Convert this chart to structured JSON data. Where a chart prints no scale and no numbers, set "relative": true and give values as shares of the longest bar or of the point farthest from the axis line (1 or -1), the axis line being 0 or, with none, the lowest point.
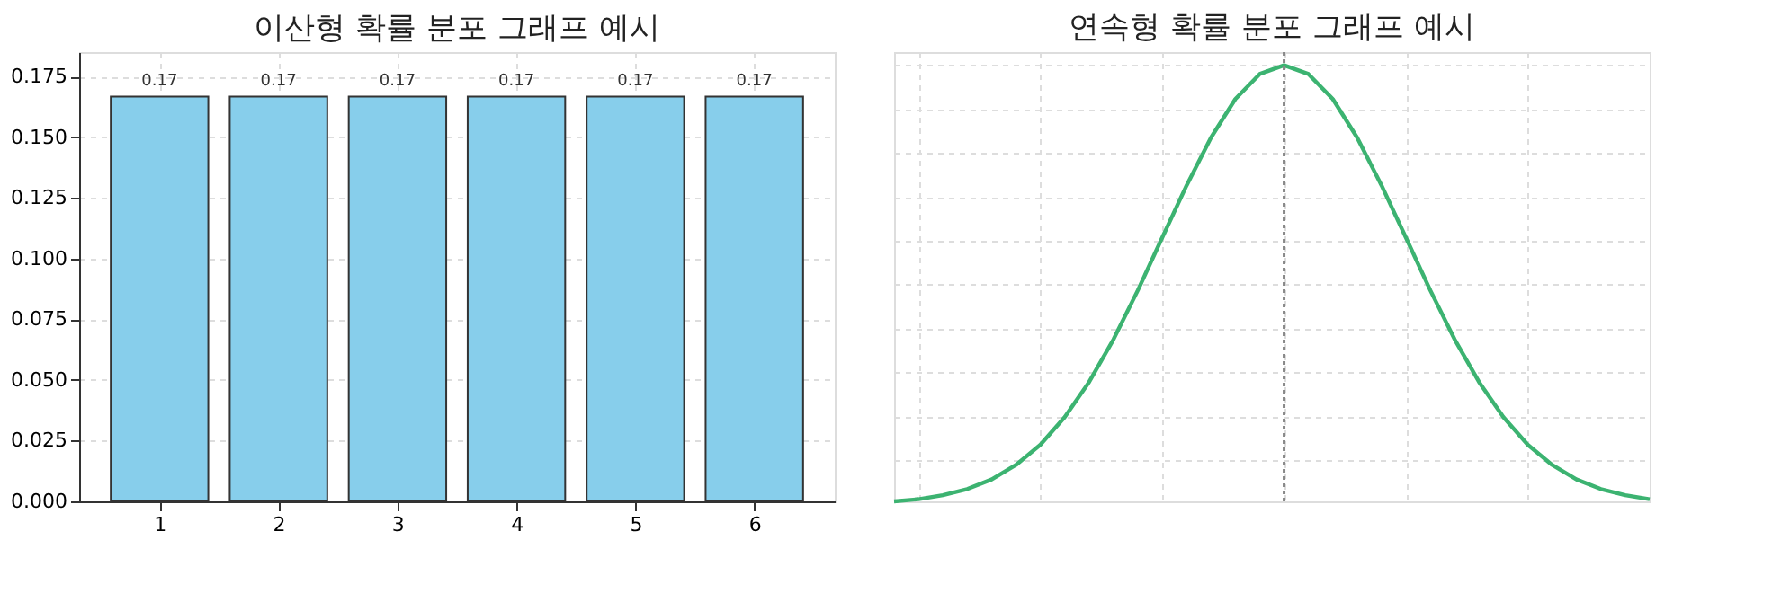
{
  "chart_data": [
    {
      "type": "bar",
      "title": "이산형 확률 분포 그래프 예시",
      "categories": [
        "1",
        "2",
        "3",
        "4",
        "5",
        "6"
      ],
      "values": [
        0.1667,
        0.1667,
        0.1667,
        0.1667,
        0.1667,
        0.1667
      ],
      "value_labels": [
        "0.17",
        "0.17",
        "0.17",
        "0.17",
        "0.17",
        "0.17"
      ],
      "color": "#87ceeb",
      "ylim": [
        0,
        0.185
      ],
      "yticks": [
        {
          "value": 0,
          "label": "0.000"
        },
        0.025,
        {
          "value": 0.05,
          "label": "0.050"
        },
        0.075,
        {
          "value": 0.1,
          "label": "0.100"
        },
        0.125,
        {
          "value": 0.15,
          "label": "0.150"
        },
        0.175
      ],
      "grid": true
    },
    {
      "type": "line",
      "title": "연속형 확률 분포 그래프 예시",
      "relative": true,
      "grid": true,
      "categories": [
        null,
        null,
        null,
        null,
        null,
        null,
        null,
        null,
        null,
        null,
        null,
        null,
        null,
        null,
        null,
        null,
        null,
        null,
        null,
        null,
        null,
        null,
        null,
        null,
        null,
        null,
        null,
        null,
        null,
        null,
        null,
        null
      ],
      "series": [
        {
          "color": "#3cb371",
          "values": [
            0.006,
            0.011,
            0.02,
            0.034,
            0.056,
            0.089,
            0.135,
            0.198,
            0.278,
            0.375,
            0.487,
            0.607,
            0.726,
            0.835,
            0.923,
            0.98,
            1,
            0.98,
            0.923,
            0.835,
            0.726,
            0.607,
            0.487,
            0.375,
            0.278,
            0.198,
            0.135,
            0.089,
            0.056,
            0.034,
            0.02,
            0.011
          ]
        }
      ]
    }
  ]
}
